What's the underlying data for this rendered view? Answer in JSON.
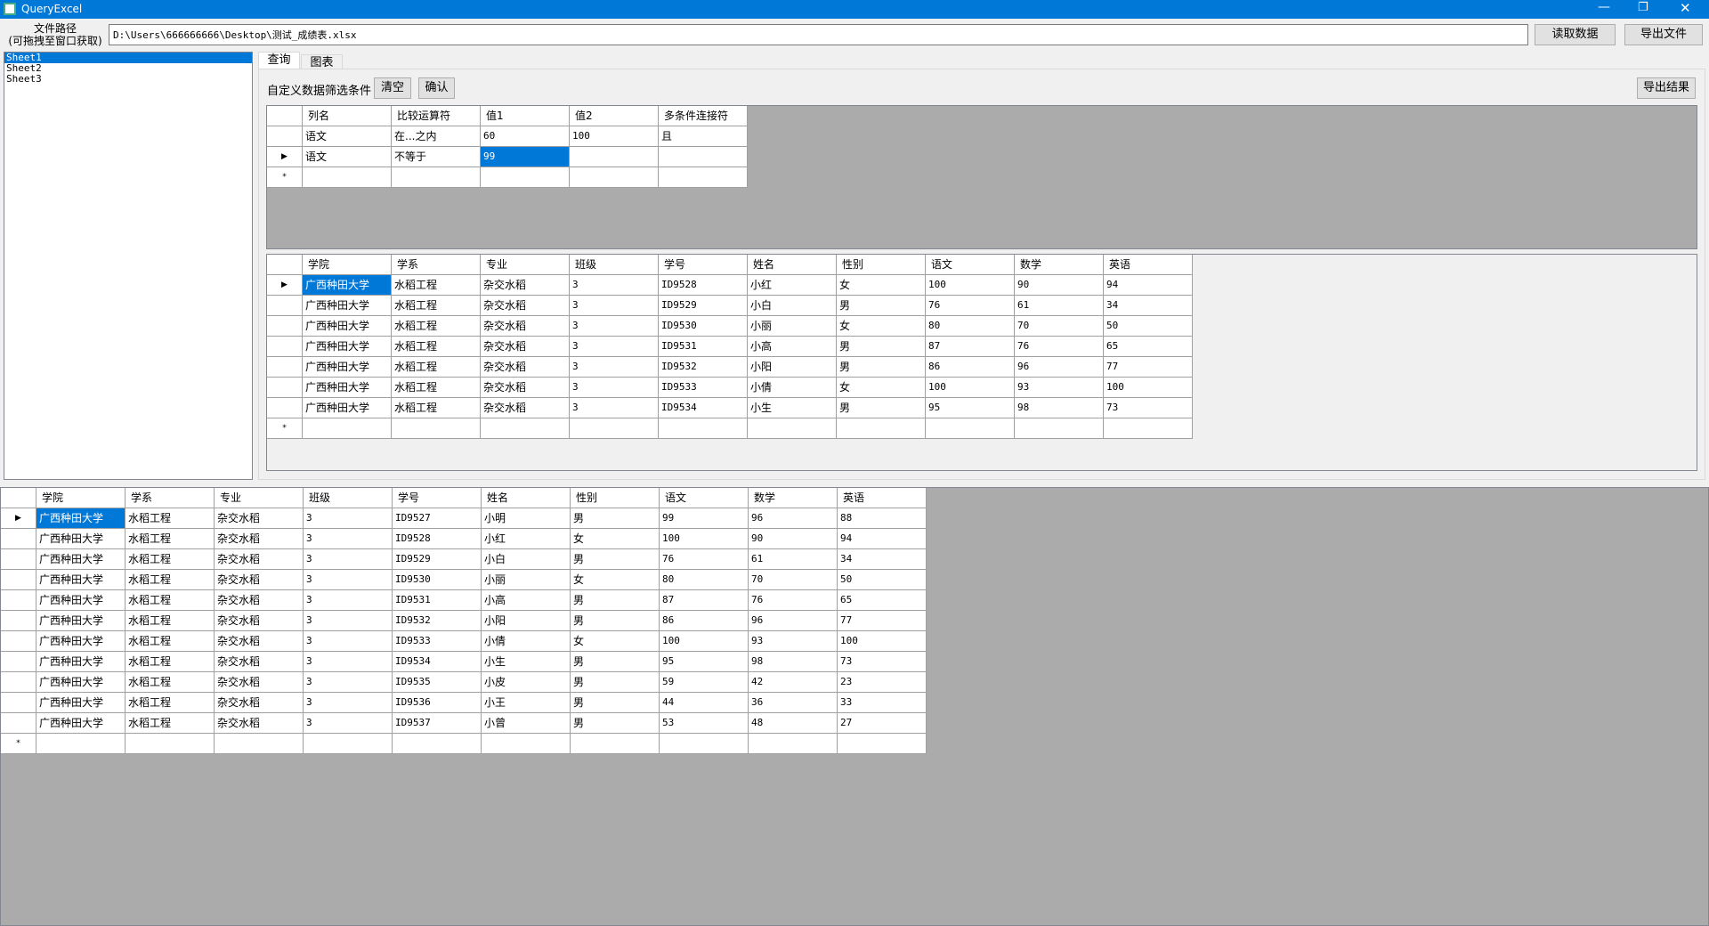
{
  "window": {
    "title": "QueryExcel"
  },
  "toolbar": {
    "path_label": "文件路径\n(可拖拽至窗口获取)",
    "path": "D:\\Users\\666666666\\Desktop\\测试_成绩表.xlsx",
    "read_button": "读取数据",
    "export_button": "导出文件"
  },
  "sheets": [
    "Sheet1",
    "Sheet2",
    "Sheet3"
  ],
  "tabs": [
    "查询",
    "图表"
  ],
  "filter": {
    "label": "自定义数据筛选条件",
    "clear_button": "清空",
    "confirm_button": "确认",
    "export_button": "导出结果"
  },
  "conditions": {
    "headers": [
      "列名",
      "比较运算符",
      "值1",
      "值2",
      "多条件连接符"
    ],
    "rows": [
      [
        "语文",
        "在...之内",
        "60",
        "100",
        "且"
      ],
      [
        "语文",
        "不等于",
        "99",
        null,
        null
      ]
    ]
  },
  "results": {
    "headers": [
      "学院",
      "学系",
      "专业",
      "班级",
      "学号",
      "姓名",
      "性别",
      "语文",
      "数学",
      "英语"
    ],
    "rows": [
      [
        "广西种田大学",
        "水稻工程",
        "杂交水稻",
        "3",
        "ID9528",
        "小红",
        "女",
        "100",
        "90",
        "94"
      ],
      [
        "广西种田大学",
        "水稻工程",
        "杂交水稻",
        "3",
        "ID9529",
        "小白",
        "男",
        "76",
        "61",
        "34"
      ],
      [
        "广西种田大学",
        "水稻工程",
        "杂交水稻",
        "3",
        "ID9530",
        "小丽",
        "女",
        "80",
        "70",
        "50"
      ],
      [
        "广西种田大学",
        "水稻工程",
        "杂交水稻",
        "3",
        "ID9531",
        "小高",
        "男",
        "87",
        "76",
        "65"
      ],
      [
        "广西种田大学",
        "水稻工程",
        "杂交水稻",
        "3",
        "ID9532",
        "小阳",
        "男",
        "86",
        "96",
        "77"
      ],
      [
        "广西种田大学",
        "水稻工程",
        "杂交水稻",
        "3",
        "ID9533",
        "小倩",
        "女",
        "100",
        "93",
        "100"
      ],
      [
        "广西种田大学",
        "水稻工程",
        "杂交水稻",
        "3",
        "ID9534",
        "小生",
        "男",
        "95",
        "98",
        "73"
      ]
    ]
  },
  "source": {
    "headers": [
      "学院",
      "学系",
      "专业",
      "班级",
      "学号",
      "姓名",
      "性别",
      "语文",
      "数学",
      "英语"
    ],
    "rows": [
      [
        "广西种田大学",
        "水稻工程",
        "杂交水稻",
        "3",
        "ID9527",
        "小明",
        "男",
        "99",
        "96",
        "88"
      ],
      [
        "广西种田大学",
        "水稻工程",
        "杂交水稻",
        "3",
        "ID9528",
        "小红",
        "女",
        "100",
        "90",
        "94"
      ],
      [
        "广西种田大学",
        "水稻工程",
        "杂交水稻",
        "3",
        "ID9529",
        "小白",
        "男",
        "76",
        "61",
        "34"
      ],
      [
        "广西种田大学",
        "水稻工程",
        "杂交水稻",
        "3",
        "ID9530",
        "小丽",
        "女",
        "80",
        "70",
        "50"
      ],
      [
        "广西种田大学",
        "水稻工程",
        "杂交水稻",
        "3",
        "ID9531",
        "小高",
        "男",
        "87",
        "76",
        "65"
      ],
      [
        "广西种田大学",
        "水稻工程",
        "杂交水稻",
        "3",
        "ID9532",
        "小阳",
        "男",
        "86",
        "96",
        "77"
      ],
      [
        "广西种田大学",
        "水稻工程",
        "杂交水稻",
        "3",
        "ID9533",
        "小倩",
        "女",
        "100",
        "93",
        "100"
      ],
      [
        "广西种田大学",
        "水稻工程",
        "杂交水稻",
        "3",
        "ID9534",
        "小生",
        "男",
        "95",
        "98",
        "73"
      ],
      [
        "广西种田大学",
        "水稻工程",
        "杂交水稻",
        "3",
        "ID9535",
        "小皮",
        "男",
        "59",
        "42",
        "23"
      ],
      [
        "广西种田大学",
        "水稻工程",
        "杂交水稻",
        "3",
        "ID9536",
        "小王",
        "男",
        "44",
        "36",
        "33"
      ],
      [
        "广西种田大学",
        "水稻工程",
        "杂交水稻",
        "3",
        "ID9537",
        "小曾",
        "男",
        "53",
        "48",
        "27"
      ]
    ]
  }
}
